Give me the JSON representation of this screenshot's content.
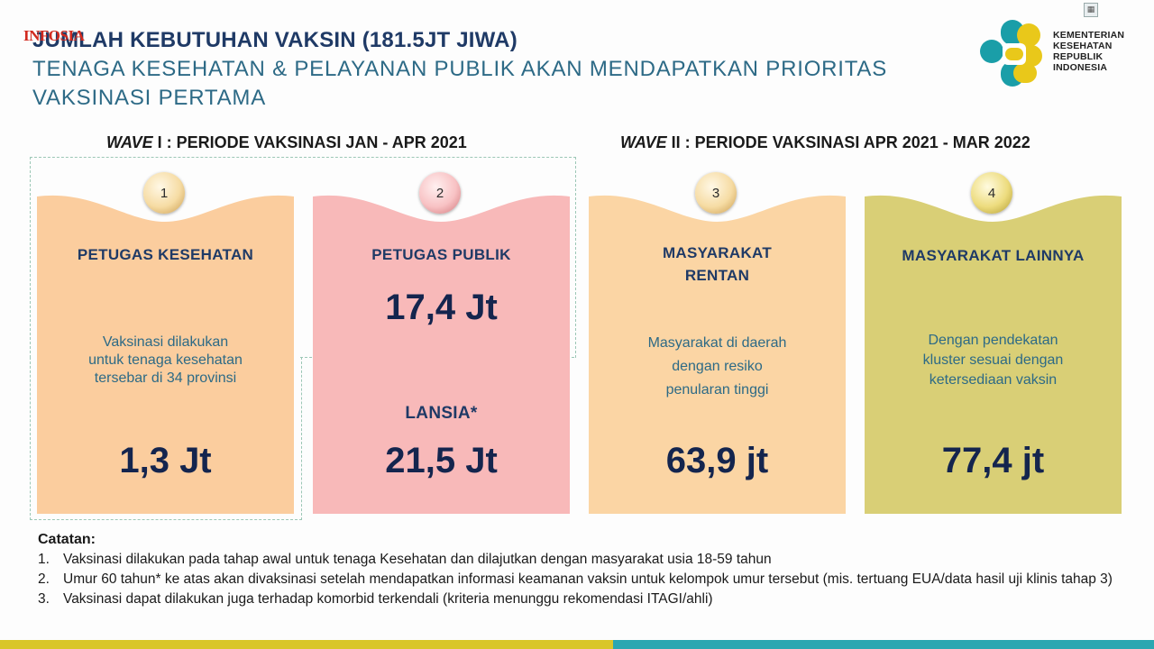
{
  "header": {
    "badge": "INFOSIA",
    "title": "JUMLAH KEBUTUHAN VAKSIN (181.5JT JIWA)",
    "subtitle": "TENAGA KESEHATAN & PELAYANAN PUBLIK AKAN MENDAPATKAN PRIORITAS VAKSINASI PERTAMA"
  },
  "logo": {
    "line1": "KEMENTERIAN",
    "line2": "KESEHATAN",
    "line3": "REPUBLIK",
    "line4": "INDONESIA",
    "colors": [
      "#1a9ea8",
      "#e9c81a"
    ]
  },
  "waves": [
    {
      "label": "WAVE",
      "rest": " I : PERIODE VAKSINASI JAN - APR 2021"
    },
    {
      "label": "WAVE",
      "rest": " II : PERIODE VAKSINASI APR 2021 - MAR 2022"
    }
  ],
  "cards": [
    {
      "num": "1",
      "label": "PETUGAS KESEHATAN",
      "desc": [
        "Vaksinasi dilakukan",
        "untuk tenaga kesehatan",
        "tersebar di 34 provinsi"
      ],
      "value": "1,3 Jt",
      "color": "#fbcd9e"
    },
    {
      "num": "2",
      "label": "PETUGAS PUBLIK",
      "value": "17,4 Jt",
      "label2": "LANSIA*",
      "value2": "21,5 Jt",
      "color": "#f8b9b9"
    },
    {
      "num": "3",
      "label": "MASYARAKAT",
      "label_line2": "RENTAN",
      "desc": [
        "Masyarakat di daerah",
        "dengan resiko",
        "penularan tinggi"
      ],
      "value": "63,9 jt",
      "color": "#fbd5a4"
    },
    {
      "num": "4",
      "label": "MASYARAKAT LAINNYA",
      "desc": [
        "Dengan pendekatan",
        "kluster sesuai dengan",
        "ketersediaan vaksin"
      ],
      "value": "77,4 jt",
      "color": "#d9cf76"
    }
  ],
  "notes": {
    "title": "Catatan:",
    "items": [
      {
        "n": "1.",
        "text": "Vaksinasi dilakukan pada tahap awal untuk tenaga Kesehatan dan dilajutkan dengan masyarakat usia 18-59 tahun"
      },
      {
        "n": "2.",
        "text": "Umur 60 tahun* ke atas akan divaksinasi setelah mendapatkan informasi keamanan vaksin untuk kelompok umur tersebut (mis. tertuang EUA/data hasil uji klinis tahap 3)"
      },
      {
        "n": "3.",
        "text": "Vaksinasi dapat dilakukan juga terhadap komorbid terkendali (kriteria menunggu rekomendasi ITAGI/ahli)"
      }
    ]
  }
}
